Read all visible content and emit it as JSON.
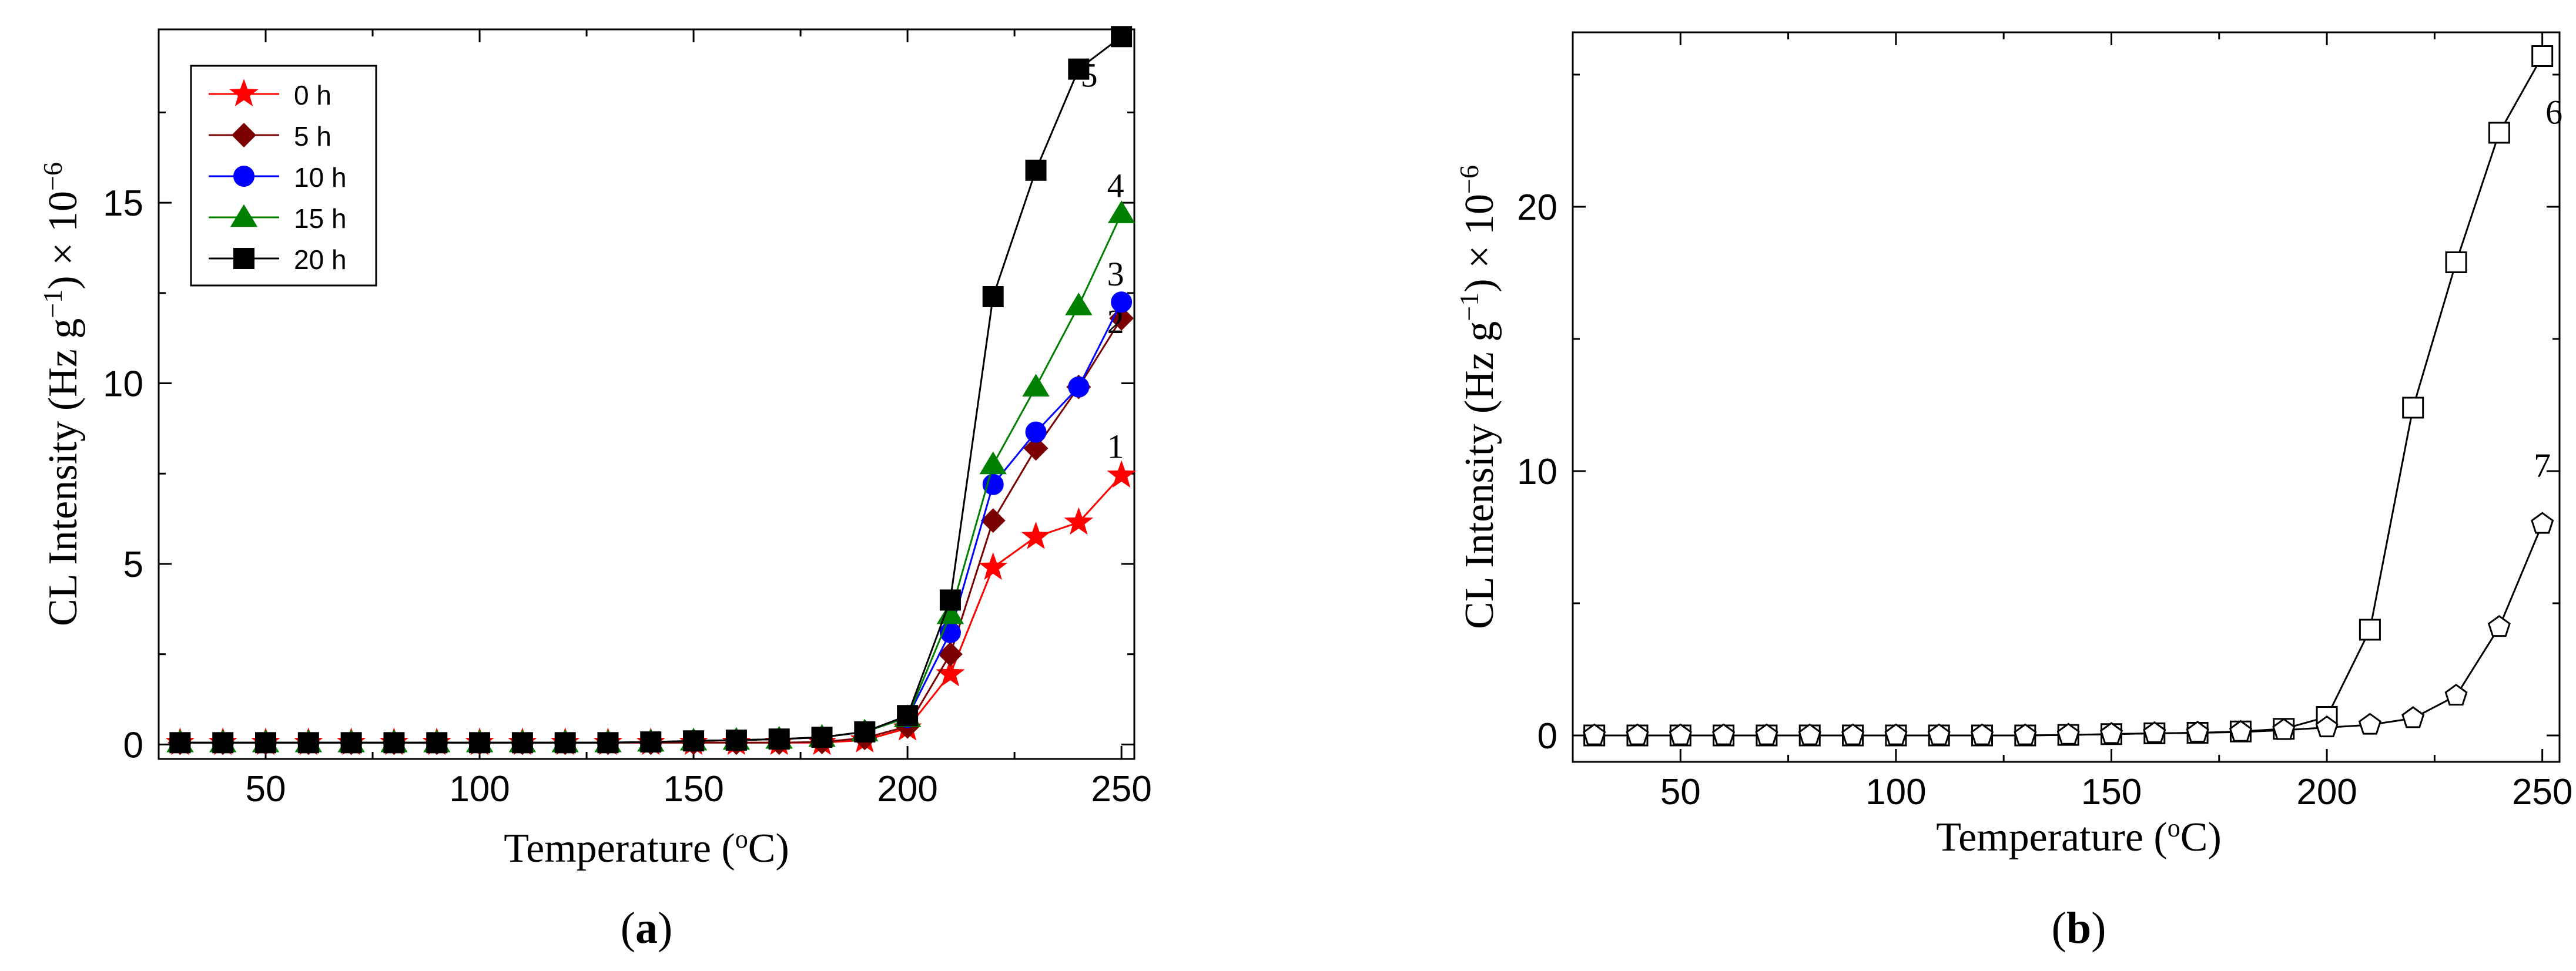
{
  "chart_data": [
    {
      "type": "line",
      "panel_label": "a",
      "xlabel": "Temperature",
      "xunit_deg": "o",
      "xunit_c": "C",
      "ylabel_main": "CL Intensity (Hz g",
      "ylabel_exp1": "−1",
      "ylabel_mid": ") × 10",
      "ylabel_exp2": "−6",
      "xlim": [
        25,
        253
      ],
      "ylim": [
        -0.4,
        19.8
      ],
      "xticks": [
        50,
        100,
        150,
        200,
        250
      ],
      "yticks": [
        0,
        5,
        10,
        15
      ],
      "x": [
        30,
        40,
        50,
        60,
        70,
        80,
        90,
        100,
        110,
        120,
        130,
        140,
        150,
        160,
        170,
        180,
        190,
        200,
        210,
        220,
        230,
        240,
        250
      ],
      "legend": {
        "position": "top-left"
      },
      "series": [
        {
          "name": "0 h",
          "curve_label": "1",
          "color": "#ff0000",
          "marker": "star",
          "values": [
            0.05,
            0.05,
            0.05,
            0.05,
            0.05,
            0.05,
            0.05,
            0.05,
            0.05,
            0.05,
            0.05,
            0.05,
            0.05,
            0.05,
            0.05,
            0.05,
            0.12,
            0.45,
            1.95,
            4.9,
            5.75,
            6.15,
            7.45
          ]
        },
        {
          "name": "5 h",
          "curve_label": "2",
          "color": "#7b0000",
          "marker": "diamond",
          "values": [
            0.05,
            0.05,
            0.05,
            0.05,
            0.05,
            0.05,
            0.05,
            0.05,
            0.05,
            0.05,
            0.05,
            0.05,
            0.05,
            0.05,
            0.05,
            0.07,
            0.18,
            0.5,
            2.5,
            6.2,
            8.2,
            9.9,
            11.8
          ]
        },
        {
          "name": "10 h",
          "curve_label": "3",
          "color": "#0000ff",
          "marker": "circle",
          "values": [
            0.05,
            0.05,
            0.05,
            0.05,
            0.05,
            0.05,
            0.05,
            0.05,
            0.05,
            0.05,
            0.05,
            0.07,
            0.1,
            0.12,
            0.15,
            0.2,
            0.35,
            0.75,
            3.1,
            7.2,
            8.65,
            9.9,
            12.25
          ]
        },
        {
          "name": "15 h",
          "curve_label": "4",
          "color": "#008000",
          "marker": "triangle",
          "values": [
            0.05,
            0.05,
            0.05,
            0.05,
            0.05,
            0.05,
            0.05,
            0.05,
            0.05,
            0.05,
            0.05,
            0.07,
            0.1,
            0.12,
            0.15,
            0.2,
            0.35,
            0.75,
            3.6,
            7.75,
            9.9,
            12.15,
            14.7
          ]
        },
        {
          "name": "20 h",
          "curve_label": "5",
          "color": "#000000",
          "marker": "square",
          "values": [
            0.05,
            0.05,
            0.05,
            0.05,
            0.05,
            0.05,
            0.05,
            0.05,
            0.05,
            0.05,
            0.05,
            0.07,
            0.1,
            0.12,
            0.15,
            0.2,
            0.35,
            0.8,
            4.0,
            12.4,
            15.9,
            18.7,
            19.6
          ]
        }
      ]
    },
    {
      "type": "line",
      "panel_label": "b",
      "xlabel": "Temperature",
      "xunit_deg": "o",
      "xunit_c": "C",
      "ylabel_main": "CL Intensity (Hz g",
      "ylabel_exp1": "−1",
      "ylabel_mid": ") × 10",
      "ylabel_exp2": "−6",
      "xlim": [
        25,
        254
      ],
      "ylim": [
        -1,
        26.6
      ],
      "xticks": [
        50,
        100,
        150,
        200,
        250
      ],
      "yticks": [
        0,
        10,
        20
      ],
      "x": [
        30,
        40,
        50,
        60,
        70,
        80,
        90,
        100,
        110,
        120,
        130,
        140,
        150,
        160,
        170,
        180,
        190,
        200,
        210,
        220,
        230,
        240,
        250
      ],
      "series": [
        {
          "name": "6",
          "curve_label": "6",
          "color": "#000000",
          "marker": "open-square",
          "values": [
            0,
            0,
            0,
            0,
            0,
            0,
            0,
            0,
            0,
            0,
            0,
            0.02,
            0.05,
            0.08,
            0.1,
            0.15,
            0.25,
            0.7,
            4.0,
            12.4,
            17.9,
            22.8,
            25.7
          ]
        },
        {
          "name": "7",
          "curve_label": "7",
          "color": "#000000",
          "marker": "open-pentagon",
          "values": [
            0,
            0,
            0,
            0,
            0,
            0,
            0,
            0,
            0,
            0,
            0,
            0.02,
            0.05,
            0.08,
            0.1,
            0.13,
            0.2,
            0.3,
            0.4,
            0.65,
            1.5,
            4.1,
            8.0
          ]
        }
      ]
    }
  ]
}
